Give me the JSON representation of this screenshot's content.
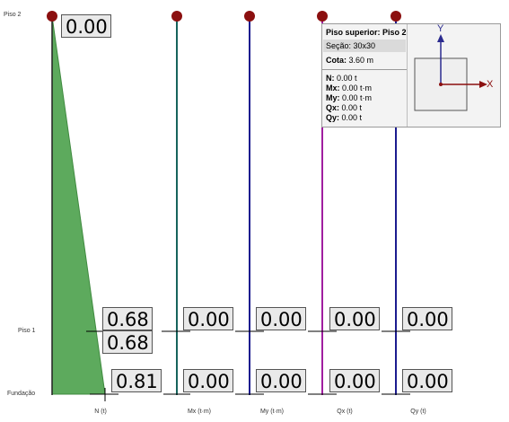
{
  "floors": {
    "top": "Piso 2",
    "middle": "Piso 1",
    "bottom": "Fundação"
  },
  "diagrams": [
    {
      "axis_label": "N (t)",
      "top_value": "0.00",
      "middle_values": [
        "0.68",
        "0.68"
      ],
      "bottom_value": "0.81",
      "line_color": "#2e7d32"
    },
    {
      "axis_label": "Mx (t·m)",
      "middle_value": "0.00",
      "bottom_value": "0.00",
      "line_color": "#17635c"
    },
    {
      "axis_label": "My (t·m)",
      "middle_value": "0.00",
      "bottom_value": "0.00",
      "line_color": "#1b1b8f"
    },
    {
      "axis_label": "Qx (t)",
      "middle_value": "0.00",
      "bottom_value": "0.00",
      "line_color": "#a01ea0"
    },
    {
      "axis_label": "Qy (t)",
      "middle_value": "0.00",
      "bottom_value": "0.00",
      "line_color": "#1b1b8f"
    }
  ],
  "tooltip": {
    "title_label": "Piso superior:",
    "title_value": "Piso 2",
    "section": "Seção: 30x30",
    "cota_label": "Cota:",
    "cota_value": "3.60 m",
    "n_label": "N:",
    "n_value": "0.00 t",
    "mx_label": "Mx:",
    "mx_value": "0.00 t·m",
    "my_label": "My:",
    "my_value": "0.00 t·m",
    "qx_label": "Qx:",
    "qx_value": "0.00 t",
    "qy_label": "Qy:",
    "qy_value": "0.00 t",
    "axis_x": "X",
    "axis_y": "Y"
  },
  "colors": {
    "node": "#8b0f0f",
    "n_fill": "#5daa5d",
    "axis_arrow": "#2b2b8f",
    "axis_x_arrow": "#8b0f0f"
  }
}
